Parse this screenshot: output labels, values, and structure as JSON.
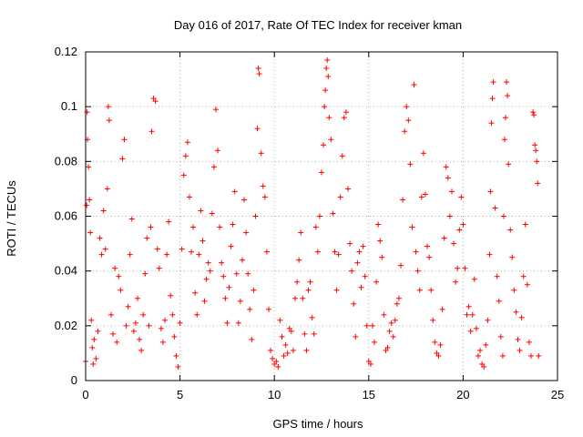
{
  "chart_data": {
    "type": "scatter",
    "title": "Day 016 of 2017, Rate Of TEC Index for receiver kman",
    "xlabel": "GPS time / hours",
    "ylabel": "ROTI / TECUs",
    "xlim": [
      0,
      25
    ],
    "ylim": [
      0,
      0.12
    ],
    "x_ticks": [
      0,
      5,
      10,
      15,
      20,
      25
    ],
    "y_ticks": [
      0,
      0.02,
      0.04,
      0.06,
      0.08,
      0.1,
      0.12
    ],
    "x_tick_labels": [
      "0",
      "5",
      "10",
      "15",
      "20",
      "25"
    ],
    "y_tick_labels": [
      "0",
      "0.02",
      "0.04",
      "0.06",
      "0.08",
      "0.1",
      "0.12"
    ],
    "grid": true,
    "legend": false,
    "marker": "+",
    "color": "#ff0000",
    "series": [
      {
        "points": [
          [
            0.0,
            0.007
          ],
          [
            0.05,
            0.064
          ],
          [
            0.08,
            0.098
          ],
          [
            0.1,
            0.088
          ],
          [
            0.15,
            0.078
          ],
          [
            0.2,
            0.066
          ],
          [
            0.25,
            0.054
          ],
          [
            0.3,
            0.022
          ],
          [
            0.35,
            0.012
          ],
          [
            0.4,
            0.006
          ],
          [
            0.45,
            0.015
          ],
          [
            0.55,
            0.008
          ],
          [
            0.65,
            0.018
          ],
          [
            0.75,
            0.052
          ],
          [
            0.85,
            0.046
          ],
          [
            0.95,
            0.062
          ],
          [
            1.05,
            0.048
          ],
          [
            1.15,
            0.07
          ],
          [
            1.2,
            0.1
          ],
          [
            1.25,
            0.095
          ],
          [
            1.35,
            0.024
          ],
          [
            1.45,
            0.017
          ],
          [
            1.55,
            0.041
          ],
          [
            1.65,
            0.014
          ],
          [
            1.75,
            0.038
          ],
          [
            1.85,
            0.033
          ],
          [
            1.95,
            0.081
          ],
          [
            2.05,
            0.088
          ],
          [
            2.15,
            0.02
          ],
          [
            2.25,
            0.027
          ],
          [
            2.35,
            0.046
          ],
          [
            2.45,
            0.059
          ],
          [
            2.55,
            0.018
          ],
          [
            2.65,
            0.021
          ],
          [
            2.75,
            0.03
          ],
          [
            2.85,
            0.015
          ],
          [
            2.95,
            0.011
          ],
          [
            3.05,
            0.024
          ],
          [
            3.15,
            0.039
          ],
          [
            3.25,
            0.052
          ],
          [
            3.35,
            0.02
          ],
          [
            3.45,
            0.056
          ],
          [
            3.5,
            0.091
          ],
          [
            3.6,
            0.103
          ],
          [
            3.7,
            0.102
          ],
          [
            3.8,
            0.048
          ],
          [
            3.9,
            0.041
          ],
          [
            4.0,
            0.019
          ],
          [
            4.1,
            0.014
          ],
          [
            4.2,
            0.022
          ],
          [
            4.3,
            0.046
          ],
          [
            4.4,
            0.058
          ],
          [
            4.5,
            0.031
          ],
          [
            4.6,
            0.024
          ],
          [
            4.7,
            0.016
          ],
          [
            4.8,
            0.009
          ],
          [
            4.9,
            0.005
          ],
          [
            5.0,
            0.021
          ],
          [
            5.1,
            0.048
          ],
          [
            5.2,
            0.075
          ],
          [
            5.3,
            0.082
          ],
          [
            5.4,
            0.087
          ],
          [
            5.5,
            0.067
          ],
          [
            5.6,
            0.047
          ],
          [
            5.7,
            0.056
          ],
          [
            5.8,
            0.032
          ],
          [
            5.9,
            0.024
          ],
          [
            6.0,
            0.046
          ],
          [
            6.1,
            0.062
          ],
          [
            6.2,
            0.051
          ],
          [
            6.3,
            0.029
          ],
          [
            6.4,
            0.037
          ],
          [
            6.5,
            0.043
          ],
          [
            6.6,
            0.04
          ],
          [
            6.7,
            0.061
          ],
          [
            6.8,
            0.078
          ],
          [
            6.9,
            0.099
          ],
          [
            7.0,
            0.084
          ],
          [
            7.1,
            0.056
          ],
          [
            7.2,
            0.043
          ],
          [
            7.3,
            0.038
          ],
          [
            7.4,
            0.03
          ],
          [
            7.5,
            0.021
          ],
          [
            7.6,
            0.034
          ],
          [
            7.7,
            0.049
          ],
          [
            7.8,
            0.057
          ],
          [
            7.9,
            0.069
          ],
          [
            8.0,
            0.039
          ],
          [
            8.1,
            0.021
          ],
          [
            8.2,
            0.029
          ],
          [
            8.3,
            0.044
          ],
          [
            8.4,
            0.066
          ],
          [
            8.5,
            0.054
          ],
          [
            8.6,
            0.039
          ],
          [
            8.7,
            0.026
          ],
          [
            8.8,
            0.015
          ],
          [
            8.9,
            0.033
          ],
          [
            9.0,
            0.06
          ],
          [
            9.1,
            0.092
          ],
          [
            9.15,
            0.114
          ],
          [
            9.2,
            0.112
          ],
          [
            9.3,
            0.083
          ],
          [
            9.4,
            0.071
          ],
          [
            9.5,
            0.067
          ],
          [
            9.6,
            0.047
          ],
          [
            9.7,
            0.026
          ],
          [
            9.8,
            0.011
          ],
          [
            9.9,
            0.008
          ],
          [
            10.0,
            0.006
          ],
          [
            10.1,
            0.007
          ],
          [
            10.2,
            0.005
          ],
          [
            10.3,
            0.022
          ],
          [
            10.4,
            0.016
          ],
          [
            10.5,
            0.009
          ],
          [
            10.6,
            0.013
          ],
          [
            10.7,
            0.01
          ],
          [
            10.8,
            0.019
          ],
          [
            10.9,
            0.018
          ],
          [
            11.0,
            0.011
          ],
          [
            11.1,
            0.03
          ],
          [
            11.2,
            0.036
          ],
          [
            11.3,
            0.044
          ],
          [
            11.4,
            0.054
          ],
          [
            11.5,
            0.03
          ],
          [
            11.6,
            0.017
          ],
          [
            11.7,
            0.011
          ],
          [
            11.8,
            0.033
          ],
          [
            11.9,
            0.036
          ],
          [
            12.0,
            0.023
          ],
          [
            12.1,
            0.017
          ],
          [
            12.2,
            0.056
          ],
          [
            12.3,
            0.047
          ],
          [
            12.4,
            0.06
          ],
          [
            12.5,
            0.076
          ],
          [
            12.6,
            0.086
          ],
          [
            12.65,
            0.1
          ],
          [
            12.7,
            0.106
          ],
          [
            12.75,
            0.114
          ],
          [
            12.8,
            0.117
          ],
          [
            12.85,
            0.111
          ],
          [
            12.9,
            0.096
          ],
          [
            13.0,
            0.088
          ],
          [
            13.1,
            0.061
          ],
          [
            13.2,
            0.047
          ],
          [
            13.3,
            0.033
          ],
          [
            13.4,
            0.046
          ],
          [
            13.5,
            0.067
          ],
          [
            13.6,
            0.082
          ],
          [
            13.7,
            0.096
          ],
          [
            13.8,
            0.098
          ],
          [
            13.9,
            0.07
          ],
          [
            14.0,
            0.05
          ],
          [
            14.1,
            0.04
          ],
          [
            14.2,
            0.028
          ],
          [
            14.3,
            0.016
          ],
          [
            14.4,
            0.043
          ],
          [
            14.5,
            0.047
          ],
          [
            14.6,
            0.034
          ],
          [
            14.7,
            0.049
          ],
          [
            14.8,
            0.038
          ],
          [
            14.9,
            0.02
          ],
          [
            15.0,
            0.007
          ],
          [
            15.1,
            0.006
          ],
          [
            15.2,
            0.02
          ],
          [
            15.3,
            0.014
          ],
          [
            15.4,
            0.036
          ],
          [
            15.5,
            0.057
          ],
          [
            15.6,
            0.051
          ],
          [
            15.7,
            0.045
          ],
          [
            15.8,
            0.024
          ],
          [
            15.9,
            0.011
          ],
          [
            16.0,
            0.012
          ],
          [
            16.1,
            0.018
          ],
          [
            16.2,
            0.021
          ],
          [
            16.3,
            0.016
          ],
          [
            16.4,
            0.022
          ],
          [
            16.5,
            0.028
          ],
          [
            16.6,
            0.03
          ],
          [
            16.7,
            0.042
          ],
          [
            16.8,
            0.066
          ],
          [
            16.9,
            0.091
          ],
          [
            17.0,
            0.1
          ],
          [
            17.1,
            0.095
          ],
          [
            17.2,
            0.079
          ],
          [
            17.3,
            0.056
          ],
          [
            17.4,
            0.108
          ],
          [
            17.5,
            0.047
          ],
          [
            17.6,
            0.04
          ],
          [
            17.7,
            0.033
          ],
          [
            17.8,
            0.067
          ],
          [
            17.9,
            0.083
          ],
          [
            18.0,
            0.068
          ],
          [
            18.1,
            0.049
          ],
          [
            18.2,
            0.045
          ],
          [
            18.3,
            0.033
          ],
          [
            18.4,
            0.022
          ],
          [
            18.5,
            0.014
          ],
          [
            18.6,
            0.01
          ],
          [
            18.7,
            0.009
          ],
          [
            18.8,
            0.013
          ],
          [
            18.9,
            0.026
          ],
          [
            19.0,
            0.052
          ],
          [
            19.1,
            0.078
          ],
          [
            19.2,
            0.074
          ],
          [
            19.3,
            0.06
          ],
          [
            19.4,
            0.069
          ],
          [
            19.5,
            0.05
          ],
          [
            19.6,
            0.036
          ],
          [
            19.7,
            0.041
          ],
          [
            19.8,
            0.055
          ],
          [
            19.9,
            0.067
          ],
          [
            20.0,
            0.057
          ],
          [
            20.1,
            0.041
          ],
          [
            20.2,
            0.024
          ],
          [
            20.3,
            0.027
          ],
          [
            20.4,
            0.018
          ],
          [
            20.5,
            0.024
          ],
          [
            20.6,
            0.037
          ],
          [
            20.7,
            0.019
          ],
          [
            20.8,
            0.009
          ],
          [
            20.9,
            0.011
          ],
          [
            21.0,
            0.006
          ],
          [
            21.1,
            0.005
          ],
          [
            21.2,
            0.013
          ],
          [
            21.3,
            0.022
          ],
          [
            21.4,
            0.046
          ],
          [
            21.45,
            0.069
          ],
          [
            21.5,
            0.094
          ],
          [
            21.55,
            0.103
          ],
          [
            21.6,
            0.109
          ],
          [
            21.7,
            0.063
          ],
          [
            21.8,
            0.038
          ],
          [
            21.9,
            0.029
          ],
          [
            22.0,
            0.016
          ],
          [
            22.1,
            0.009
          ],
          [
            22.15,
            0.06
          ],
          [
            22.2,
            0.088
          ],
          [
            22.25,
            0.096
          ],
          [
            22.3,
            0.109
          ],
          [
            22.35,
            0.104
          ],
          [
            22.4,
            0.079
          ],
          [
            22.5,
            0.055
          ],
          [
            22.6,
            0.045
          ],
          [
            22.7,
            0.033
          ],
          [
            22.8,
            0.025
          ],
          [
            22.9,
            0.015
          ],
          [
            23.0,
            0.011
          ],
          [
            23.1,
            0.023
          ],
          [
            23.2,
            0.038
          ],
          [
            23.3,
            0.057
          ],
          [
            23.4,
            0.035
          ],
          [
            23.5,
            0.014
          ],
          [
            23.6,
            0.009
          ],
          [
            23.7,
            0.098
          ],
          [
            23.75,
            0.097
          ],
          [
            23.8,
            0.086
          ],
          [
            23.85,
            0.084
          ],
          [
            23.9,
            0.08
          ],
          [
            23.95,
            0.072
          ],
          [
            24.0,
            0.009
          ]
        ]
      }
    ]
  }
}
